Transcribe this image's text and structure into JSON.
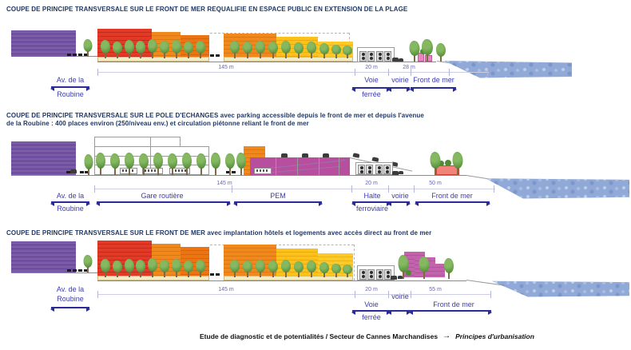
{
  "sections": [
    {
      "title": "COUPE  DE PRINCIPE TRANSVERSALE  SUR LE FRONT DE MER REQUALIFIE EN ESPACE PUBLIC EN EXTENSION  DE LA PLAGE",
      "dims": {
        "main": "145 m",
        "rail": "20 m",
        "front": "28 m"
      },
      "labels": {
        "avenue_1": "Av. de la",
        "avenue_2": "Roubine",
        "rail_1": "Voie",
        "rail_2": "ferrée",
        "road": "voirie",
        "seafront": "Front de mer"
      }
    },
    {
      "title": "COUPE  DE PRINCIPE TRANSVERSALE  SUR LE POLE D'ECHANGES avec parking accessible depuis le front de mer et depuis l'avenue de la Roubine : 400 places environ (250/niveau env.) et circulation piétonne reliant le front de mer",
      "dims": {
        "main": "145 m",
        "rail": "20 m",
        "front": "50 m"
      },
      "labels": {
        "avenue_1": "Av. de la",
        "avenue_2": "Roubine",
        "bus_station": "Gare routière",
        "hub": "PEM",
        "rail_1": "Halte",
        "rail_2": "ferroviaire",
        "road": "voirie",
        "seafront": "Front de mer"
      }
    },
    {
      "title": "COUPE  DE PRINCIPE TRANSVERSALE  SUR LE FRONT DE MER avec implantation hôtels et logements avec accès direct au front de mer",
      "dims": {
        "main": "145 m",
        "rail": "20 m",
        "front": "55 m"
      },
      "labels": {
        "avenue_1": "Av. de la",
        "avenue_2": "Roubine",
        "rail_1": "Voie",
        "rail_2": "ferrée",
        "road": "voirie",
        "seafront": "Front de mer"
      }
    }
  ],
  "footer": {
    "study": "Etude de diagnostic et de potentialités / Secteur de Cannes Marchandises",
    "arrow": "→",
    "principles": "Principes d'urbanisation"
  },
  "colors": {
    "title": "#1e3767",
    "label": "#3b3bb3",
    "arrow": "#2a2a99",
    "purple": "#7a5aa6",
    "red": "#e23a26",
    "orange": "#f0891d",
    "yellow": "#fcc11a",
    "magenta": "#b84f9e",
    "sea": "#91a9d6"
  }
}
